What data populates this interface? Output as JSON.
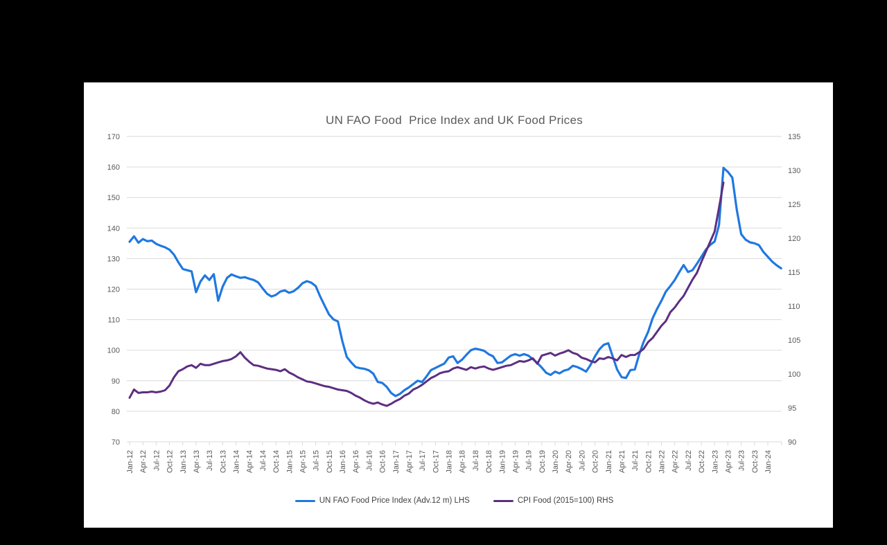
{
  "page": {
    "background_color": "#000000",
    "panel_color": "#ffffff"
  },
  "colors": {
    "grid": "#d9d9d9",
    "axis_text": "#595959",
    "title_text": "#595959",
    "legend_text": "#404040",
    "fao_line": "#1f78e0",
    "cpi_line": "#5c2e82"
  },
  "chart_data": {
    "type": "line",
    "title": "UN FAO Food  Price Index and UK Food Prices",
    "grid": true,
    "legend_position": "bottom",
    "left_axis": {
      "min": 70,
      "max": 170,
      "step": 10,
      "ticks": [
        70,
        80,
        90,
        100,
        110,
        120,
        130,
        140,
        150,
        160,
        170
      ]
    },
    "right_axis": {
      "min": 90,
      "max": 135,
      "step": 5,
      "ticks": [
        90,
        95,
        100,
        105,
        110,
        115,
        120,
        125,
        130,
        135
      ]
    },
    "x_axis": {
      "start_month": "Jan-12",
      "months_total": 148,
      "label_every_n_months": 3,
      "tick_labels": [
        "Jan-12",
        "Apr-12",
        "Jul-12",
        "Oct-12",
        "Jan-13",
        "Apr-13",
        "Jul-13",
        "Oct-13",
        "Jan-14",
        "Apr-14",
        "Jul-14",
        "Oct-14",
        "Jan-15",
        "Apr-15",
        "Jul-15",
        "Oct-15",
        "Jan-16",
        "Apr-16",
        "Jul-16",
        "Oct-16",
        "Jan-17",
        "Apr-17",
        "Jul-17",
        "Oct-17",
        "Jan-18",
        "Apr-18",
        "Jul-18",
        "Oct-18",
        "Jan-19",
        "Apr-19",
        "Jul-19",
        "Oct-19",
        "Jan-20",
        "Apr-20",
        "Jul-20",
        "Oct-20",
        "Jan-21",
        "Apr-21",
        "Jul-21",
        "Oct-21",
        "Jan-22",
        "Apr-22",
        "Jul-22",
        "Oct-22",
        "Jan-23",
        "Apr-23",
        "Jul-23",
        "Oct-23",
        "Jan-24"
      ]
    },
    "series": [
      {
        "name": "UN FAO Food Price Index (Adv.12 m) LHS",
        "axis": "left",
        "color": "#1f78e0",
        "values": [
          135.5,
          137.3,
          135.2,
          136.4,
          135.7,
          135.9,
          134.8,
          134.2,
          133.7,
          132.9,
          131.3,
          128.8,
          126.6,
          126.2,
          125.8,
          119.0,
          122.5,
          124.5,
          123.0,
          124.9,
          116.2,
          120.8,
          123.7,
          124.8,
          124.2,
          123.7,
          123.9,
          123.4,
          123.0,
          122.2,
          120.3,
          118.5,
          117.6,
          118.1,
          119.2,
          119.6,
          118.8,
          119.3,
          120.4,
          121.9,
          122.6,
          122.1,
          121.0,
          117.6,
          114.6,
          111.7,
          110.1,
          109.4,
          103.0,
          97.8,
          96.0,
          94.5,
          94.1,
          93.9,
          93.4,
          92.3,
          89.6,
          89.3,
          88.0,
          86.0,
          85.0,
          85.7,
          86.9,
          87.8,
          88.9,
          90.0,
          89.6,
          91.4,
          93.5,
          94.2,
          94.9,
          95.6,
          97.6,
          98.0,
          95.8,
          96.9,
          98.5,
          100.0,
          100.5,
          100.2,
          99.8,
          98.7,
          98.0,
          95.8,
          96.0,
          97.1,
          98.2,
          98.7,
          98.2,
          98.7,
          98.2,
          97.1,
          95.8,
          94.3,
          92.6,
          91.9,
          93.0,
          92.4,
          93.3,
          93.7,
          94.9,
          94.5,
          93.8,
          93.0,
          95.2,
          98.0,
          100.3,
          101.8,
          102.3,
          98.0,
          93.7,
          91.2,
          90.9,
          93.5,
          93.7,
          98.7,
          102.8,
          106.0,
          110.4,
          113.5,
          116.2,
          119.2,
          121.0,
          123.0,
          125.5,
          127.9,
          125.6,
          126.2,
          128.3,
          130.6,
          132.9,
          134.5,
          135.6,
          141.0,
          159.7,
          158.4,
          156.5,
          146.0,
          138.0,
          136.2,
          135.3,
          135.0,
          134.4,
          132.2,
          130.6,
          129.0,
          127.8,
          126.8
        ]
      },
      {
        "name": "CPI Food (2015=100) RHS",
        "axis": "right",
        "color": "#5c2e82",
        "values": [
          96.5,
          97.7,
          97.2,
          97.3,
          97.3,
          97.4,
          97.3,
          97.4,
          97.6,
          98.3,
          99.5,
          100.4,
          100.7,
          101.1,
          101.3,
          100.9,
          101.5,
          101.3,
          101.3,
          101.5,
          101.7,
          101.9,
          102.0,
          102.2,
          102.6,
          103.2,
          102.4,
          101.8,
          101.3,
          101.2,
          101.0,
          100.8,
          100.7,
          100.6,
          100.4,
          100.7,
          100.2,
          99.9,
          99.5,
          99.2,
          98.9,
          98.8,
          98.6,
          98.4,
          98.2,
          98.1,
          97.9,
          97.7,
          97.6,
          97.5,
          97.2,
          96.8,
          96.5,
          96.1,
          95.8,
          95.6,
          95.8,
          95.5,
          95.3,
          95.6,
          96.0,
          96.3,
          96.8,
          97.1,
          97.7,
          98.0,
          98.4,
          98.9,
          99.4,
          99.7,
          100.1,
          100.3,
          100.4,
          100.8,
          101.0,
          100.8,
          100.6,
          101.0,
          100.8,
          101.0,
          101.1,
          100.8,
          100.6,
          100.8,
          101.0,
          101.2,
          101.3,
          101.6,
          101.9,
          101.8,
          102.0,
          102.3,
          101.5,
          102.7,
          102.9,
          103.1,
          102.7,
          103.0,
          103.2,
          103.5,
          103.1,
          102.9,
          102.4,
          102.2,
          101.9,
          101.7,
          102.3,
          102.2,
          102.5,
          102.3,
          102.0,
          102.8,
          102.5,
          102.8,
          102.8,
          103.2,
          103.7,
          104.7,
          105.3,
          106.2,
          107.1,
          107.8,
          109.1,
          109.8,
          110.7,
          111.5,
          112.7,
          113.9,
          114.9,
          116.5,
          118.0,
          119.5,
          121.0,
          124.5,
          128.2
        ]
      }
    ]
  }
}
